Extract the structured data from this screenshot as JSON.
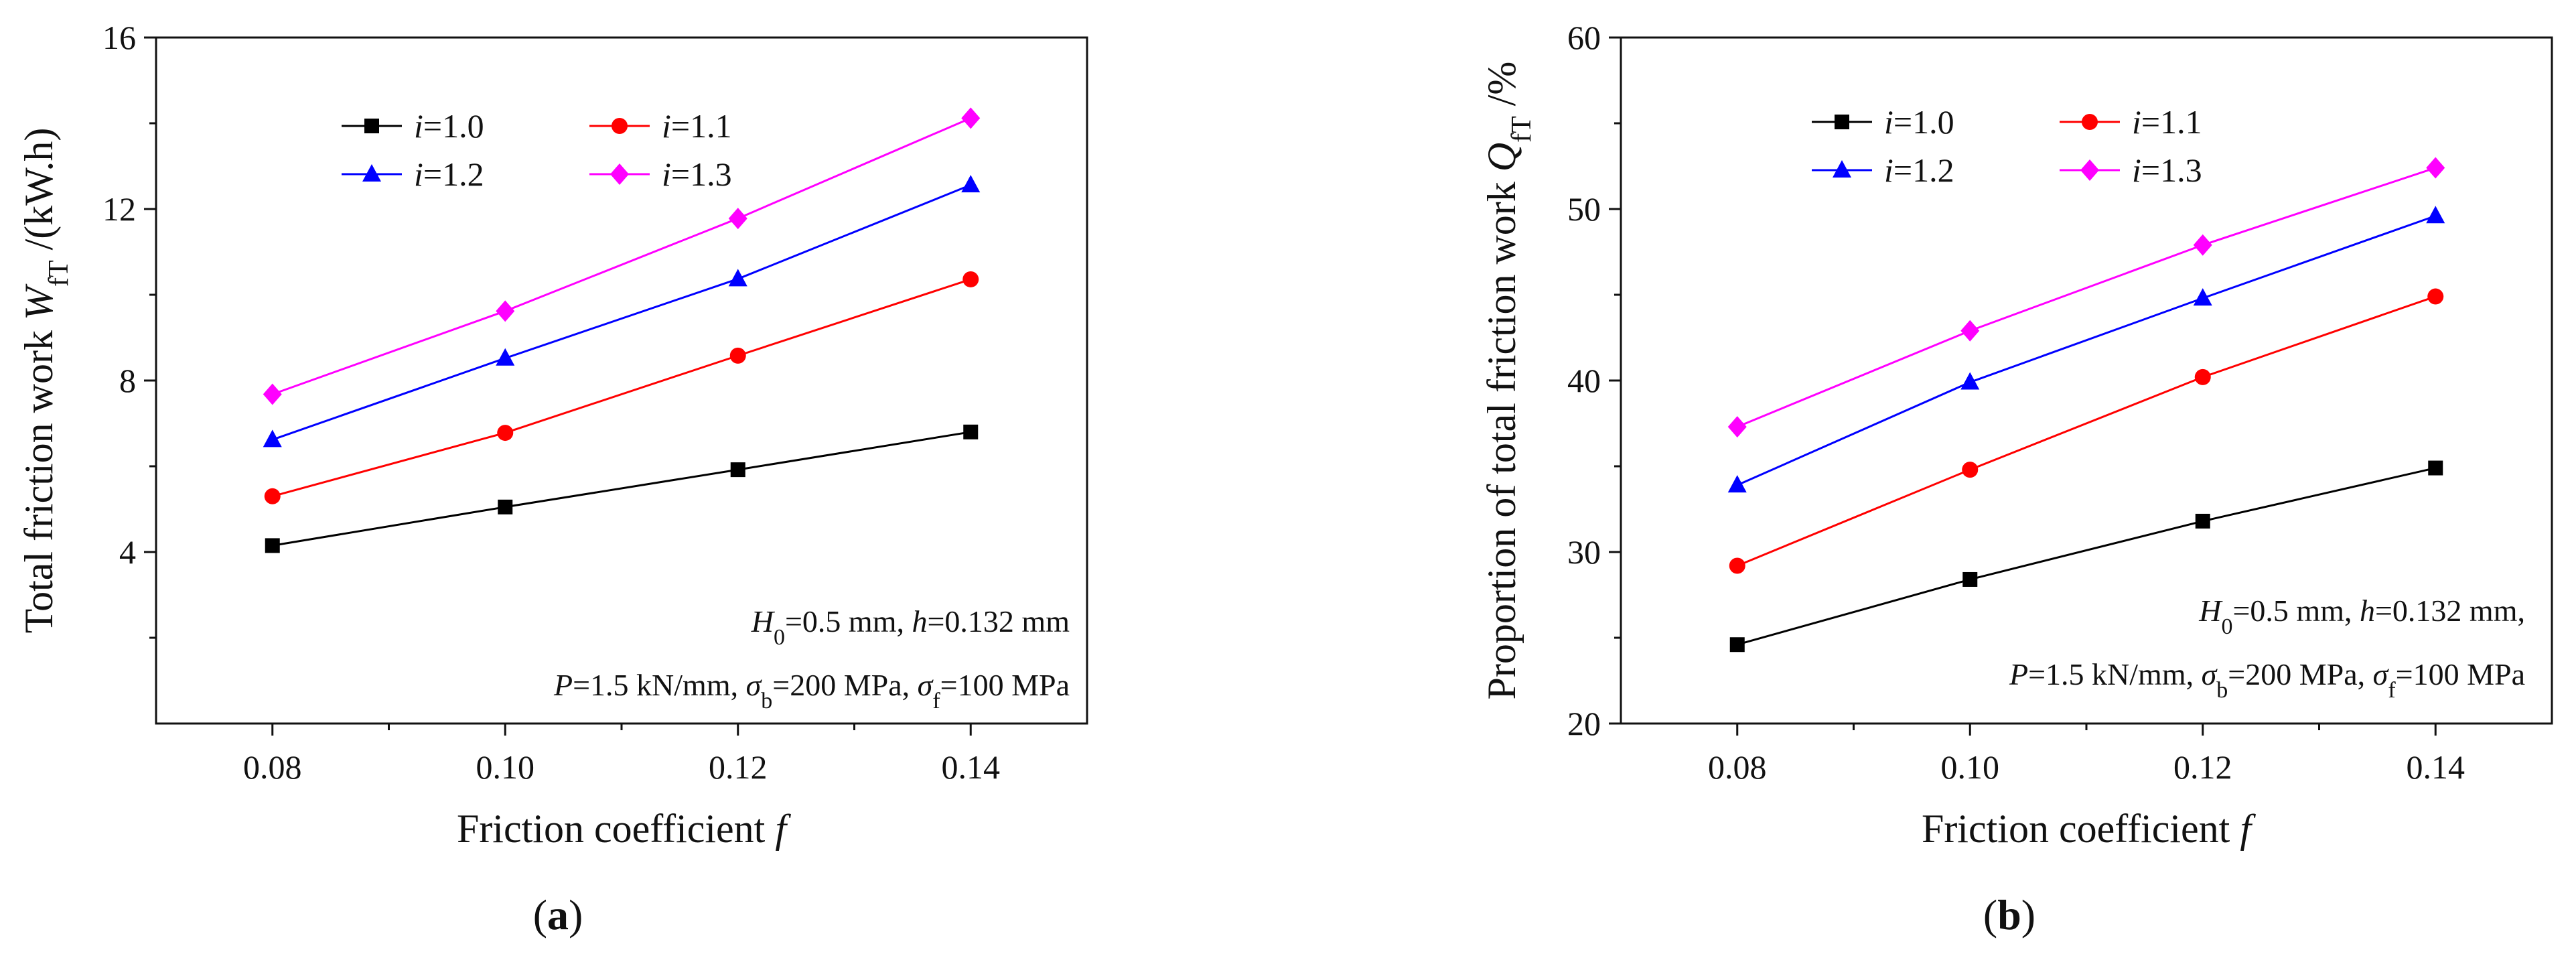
{
  "chart_data": [
    {
      "panel": "(a)",
      "panel_letter": "a",
      "type": "line",
      "x": [
        0.08,
        0.1,
        0.12,
        0.14
      ],
      "x_ticks": [
        "0.08",
        "0.10",
        "0.12",
        "0.14"
      ],
      "xlim": [
        0.07,
        0.15
      ],
      "xlabel": "Friction coefficient f",
      "xlabel_text": "Friction coefficient ",
      "xlabel_var": "f",
      "ylabel": "Total friction work W_fT /(kW.h)",
      "ylabel_text": "Total friction work ",
      "ylabel_var": "W",
      "ylabel_sub": "fT",
      "ylabel_unit": " /(kW.h)",
      "ylim": [
        0,
        16
      ],
      "y_ticks": [
        4,
        8,
        12,
        16
      ],
      "y_tick_labels": [
        "4",
        "8",
        "12",
        "16"
      ],
      "grid": false,
      "legend_position": "top-left",
      "annotation_line1": "H0=0.5 mm, h=0.132 mm",
      "annotation_line2": "P=1.5 kN/mm, σb=200 MPa, σf=100 MPa",
      "series": [
        {
          "name": "i=1.0",
          "label_var": "i",
          "label_val": "=1.0",
          "color": "#000000",
          "marker": "square",
          "values": [
            4.15,
            5.05,
            5.92,
            6.8
          ]
        },
        {
          "name": "i=1.1",
          "label_var": "i",
          "label_val": "=1.1",
          "color": "#ff0000",
          "marker": "circle",
          "values": [
            5.3,
            6.78,
            8.58,
            10.36
          ]
        },
        {
          "name": "i=1.2",
          "label_var": "i",
          "label_val": "=1.2",
          "color": "#0000ff",
          "marker": "triangle",
          "values": [
            6.62,
            8.52,
            10.37,
            12.56
          ]
        },
        {
          "name": "i=1.3",
          "label_var": "i",
          "label_val": "=1.3",
          "color": "#ff00ff",
          "marker": "diamond",
          "values": [
            7.68,
            9.62,
            11.78,
            14.12
          ]
        }
      ]
    },
    {
      "panel": "(b)",
      "panel_letter": "b",
      "type": "line",
      "x": [
        0.08,
        0.1,
        0.12,
        0.14
      ],
      "x_ticks": [
        "0.08",
        "0.10",
        "0.12",
        "0.14"
      ],
      "xlim": [
        0.07,
        0.15
      ],
      "xlabel": "Friction coefficient f",
      "xlabel_text": "Friction coefficient ",
      "xlabel_var": "f",
      "ylabel": "Proportion of total friction work Q_fT /%",
      "ylabel_text": "Proportion of total friction work ",
      "ylabel_var": "Q",
      "ylabel_sub": "fT",
      "ylabel_unit": " /%",
      "ylim": [
        20,
        60
      ],
      "y_ticks": [
        20,
        30,
        40,
        50,
        60
      ],
      "y_tick_labels": [
        "20",
        "30",
        "40",
        "50",
        "60"
      ],
      "grid": false,
      "legend_position": "top-left",
      "annotation_line1": "H0=0.5 mm, h=0.132 mm,",
      "annotation_line2": "P=1.5 kN/mm, σb=200 MPa, σf=100 MPa",
      "series": [
        {
          "name": "i=1.0",
          "label_var": "i",
          "label_val": "=1.0",
          "color": "#000000",
          "marker": "square",
          "values": [
            24.6,
            28.4,
            31.8,
            34.9
          ]
        },
        {
          "name": "i=1.1",
          "label_var": "i",
          "label_val": "=1.1",
          "color": "#ff0000",
          "marker": "circle",
          "values": [
            29.2,
            34.8,
            40.2,
            44.9
          ]
        },
        {
          "name": "i=1.2",
          "label_var": "i",
          "label_val": "=1.2",
          "color": "#0000ff",
          "marker": "triangle",
          "values": [
            33.9,
            39.9,
            44.8,
            49.6
          ]
        },
        {
          "name": "i=1.3",
          "label_var": "i",
          "label_val": "=1.3",
          "color": "#ff00ff",
          "marker": "diamond",
          "values": [
            37.3,
            42.9,
            47.9,
            52.4
          ]
        }
      ]
    }
  ]
}
